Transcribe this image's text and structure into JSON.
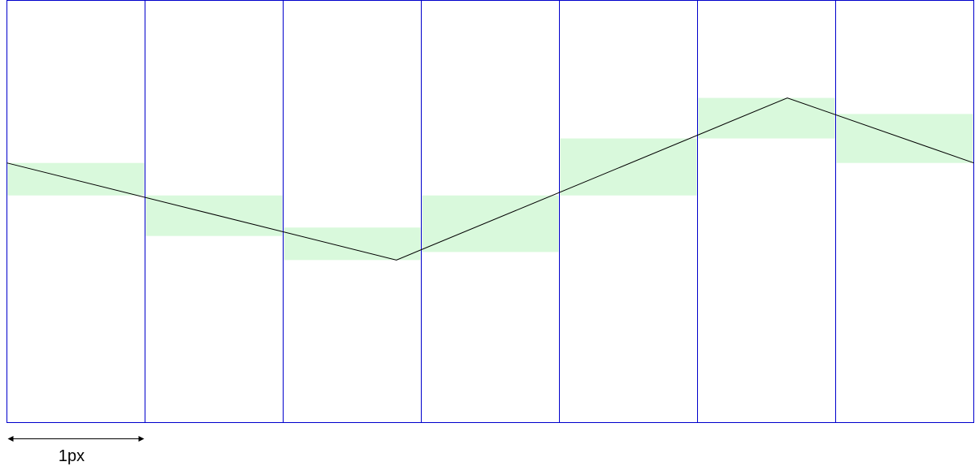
{
  "colors": {
    "grid": "#0000cc",
    "band_fill": "#d9f9dc",
    "polyline": "#000000",
    "arrow": "#000000"
  },
  "diagram": {
    "pixel_count": 7,
    "scale_label": "1px",
    "grid": {
      "rows": 1,
      "columns": 7
    },
    "polyline_vertices": [
      {
        "col": 0.0,
        "row": 0.385
      },
      {
        "col": 2.82,
        "row": 0.615
      },
      {
        "col": 5.65,
        "row": 0.231
      },
      {
        "col": 7.0,
        "row": 0.385
      }
    ],
    "coverage_bands": [
      {
        "col": 0,
        "top": 0.385,
        "bottom": 0.462
      },
      {
        "col": 1,
        "top": 0.462,
        "bottom": 0.558
      },
      {
        "col": 2,
        "top": 0.538,
        "bottom": 0.615
      },
      {
        "col": 3,
        "top": 0.462,
        "bottom": 0.596
      },
      {
        "col": 4,
        "top": 0.327,
        "bottom": 0.462
      },
      {
        "col": 5,
        "top": 0.231,
        "bottom": 0.327
      },
      {
        "col": 6,
        "top": 0.269,
        "bottom": 0.385
      }
    ]
  }
}
